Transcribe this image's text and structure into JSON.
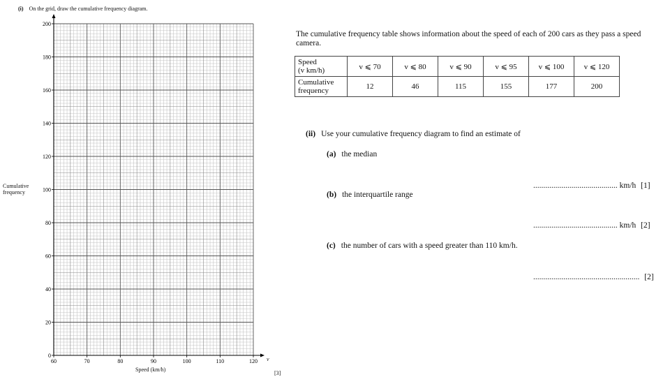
{
  "part_i": {
    "label": "(i)",
    "text": "On the grid, draw the cumulative frequency diagram.",
    "marks": "[3]"
  },
  "chart_data": {
    "type": "grid",
    "title": "",
    "xlabel": "Speed (km/h)",
    "ylabel_line1": "Cumulative",
    "ylabel_line2": "frequency",
    "x_axis_symbol": "v",
    "xlim": [
      60,
      120
    ],
    "ylim": [
      0,
      200
    ],
    "x_ticks": [
      60,
      70,
      80,
      90,
      100,
      110,
      120
    ],
    "y_ticks": [
      0,
      20,
      40,
      60,
      80,
      100,
      120,
      140,
      160,
      180,
      200
    ],
    "grid": true
  },
  "intro": "The cumulative frequency table shows information about the speed of each of 200 cars as they pass a speed camera.",
  "table": {
    "row1_header_line1": "Speed",
    "row1_header_line2": "(v km/h)",
    "row2_header_line1": "Cumulative",
    "row2_header_line2": "frequency",
    "classes": [
      "v ⩽ 70",
      "v ⩽ 80",
      "v ⩽ 90",
      "v ⩽ 95",
      "v ⩽ 100",
      "v ⩽ 120"
    ],
    "frequencies": [
      "12",
      "46",
      "115",
      "155",
      "177",
      "200"
    ]
  },
  "part_ii": {
    "label": "(ii)",
    "text": "Use your cumulative frequency diagram to find an estimate of",
    "a": {
      "label": "(a)",
      "text": "the median",
      "unit": "km/h",
      "marks": "[1]"
    },
    "b": {
      "label": "(b)",
      "text": "the interquartile range",
      "unit": "km/h",
      "marks": "[2]"
    },
    "c": {
      "label": "(c)",
      "text": "the number of cars with a speed greater than 110 km/h.",
      "marks": "[2]"
    }
  },
  "dots_short": "..........................................",
  "dots_long": "....................................................."
}
